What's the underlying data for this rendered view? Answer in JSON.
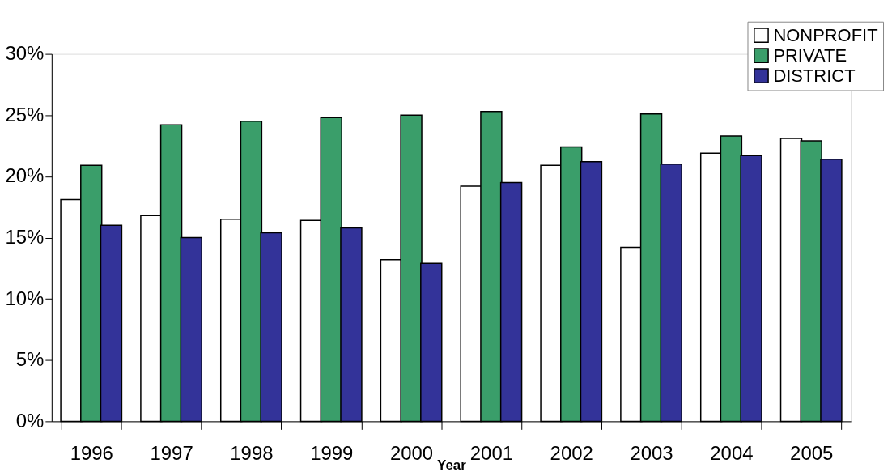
{
  "chart_data": {
    "type": "bar",
    "xlabel": "Year",
    "categories": [
      "1996",
      "1997",
      "1998",
      "1999",
      "2000",
      "2001",
      "2002",
      "2003",
      "2004",
      "2005"
    ],
    "series": [
      {
        "name": "NONPROFIT",
        "color": "#ffffff",
        "values": [
          18.1,
          16.8,
          16.5,
          16.4,
          13.2,
          19.2,
          20.9,
          14.2,
          21.9,
          23.1
        ]
      },
      {
        "name": "PRIVATE",
        "color": "#3a9e6a",
        "values": [
          20.9,
          24.2,
          24.5,
          24.8,
          25.0,
          25.3,
          22.4,
          25.1,
          23.3,
          22.9
        ]
      },
      {
        "name": "DISTRICT",
        "color": "#333399",
        "values": [
          16.0,
          15.0,
          15.4,
          15.8,
          12.9,
          19.5,
          21.2,
          21.0,
          21.7,
          21.4
        ]
      }
    ],
    "ylim": [
      0,
      30
    ],
    "yticks": [
      {
        "value": 0,
        "label": "0%"
      },
      {
        "value": 5,
        "label": "5%"
      },
      {
        "value": 10,
        "label": "10%"
      },
      {
        "value": 15,
        "label": "15%"
      },
      {
        "value": 20,
        "label": "20%"
      },
      {
        "value": 25,
        "label": "25%"
      },
      {
        "value": 30,
        "label": "30%"
      }
    ],
    "grid": false,
    "legend": "top right"
  }
}
